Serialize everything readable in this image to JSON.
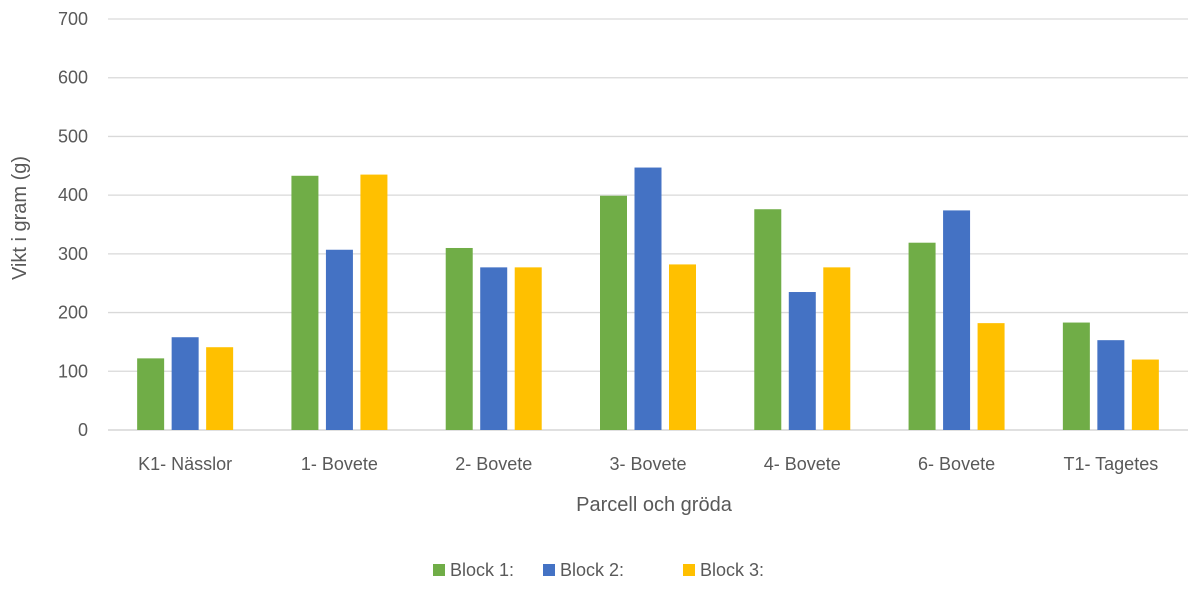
{
  "chart_data": {
    "type": "bar",
    "title": "",
    "xlabel": "Parcell och gröda",
    "ylabel": "Vikt i gram (g)",
    "ylim": [
      0,
      700
    ],
    "yticks": [
      0,
      100,
      200,
      300,
      400,
      500,
      600,
      700
    ],
    "grid": true,
    "legend_position": "bottom",
    "categories": [
      "K1- Nässlor",
      "1- Bovete",
      "2- Bovete",
      "3- Bovete",
      "4- Bovete",
      "6- Bovete",
      "T1- Tagetes"
    ],
    "series": [
      {
        "name": "Block 1:",
        "color": "#70AD47",
        "values": [
          122,
          433,
          310,
          399,
          376,
          319,
          183
        ]
      },
      {
        "name": "Block 2:",
        "color": "#4472C4",
        "values": [
          158,
          307,
          277,
          447,
          235,
          374,
          153
        ]
      },
      {
        "name": "Block 3:",
        "color": "#FFC000",
        "values": [
          141,
          435,
          277,
          282,
          277,
          182,
          120
        ]
      }
    ],
    "colors": {
      "gridline": "#D9D9D9",
      "text": "#595959"
    }
  }
}
